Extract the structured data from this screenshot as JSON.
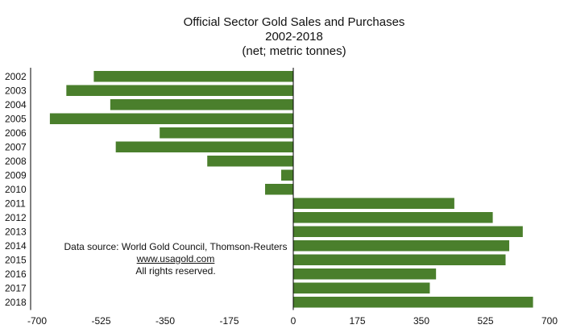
{
  "chart_data": {
    "type": "bar",
    "orientation": "horizontal",
    "title": "Official Sector Gold Sales and Purchases",
    "subtitle": "2002-2018",
    "unit_label": "(net; metric tonnes)",
    "categories": [
      "2002",
      "2003",
      "2004",
      "2005",
      "2006",
      "2007",
      "2008",
      "2009",
      "2010",
      "2011",
      "2012",
      "2013",
      "2014",
      "2015",
      "2016",
      "2017",
      "2018"
    ],
    "values": [
      -545,
      -620,
      -500,
      -665,
      -365,
      -485,
      -235,
      -33,
      -77,
      440,
      545,
      627,
      590,
      580,
      390,
      373,
      655
    ],
    "xlim": [
      -700,
      700
    ],
    "xticks": [
      -700,
      -525,
      -350,
      -175,
      0,
      175,
      350,
      525,
      700
    ],
    "xlabel": "",
    "ylabel": "",
    "bar_color": "#4a7f2c",
    "grid": false,
    "annotations": {
      "source": "Data source: World Gold Council, Thomson-Reuters",
      "website": "www.usagold.com",
      "rights": "All rights reserved."
    }
  }
}
